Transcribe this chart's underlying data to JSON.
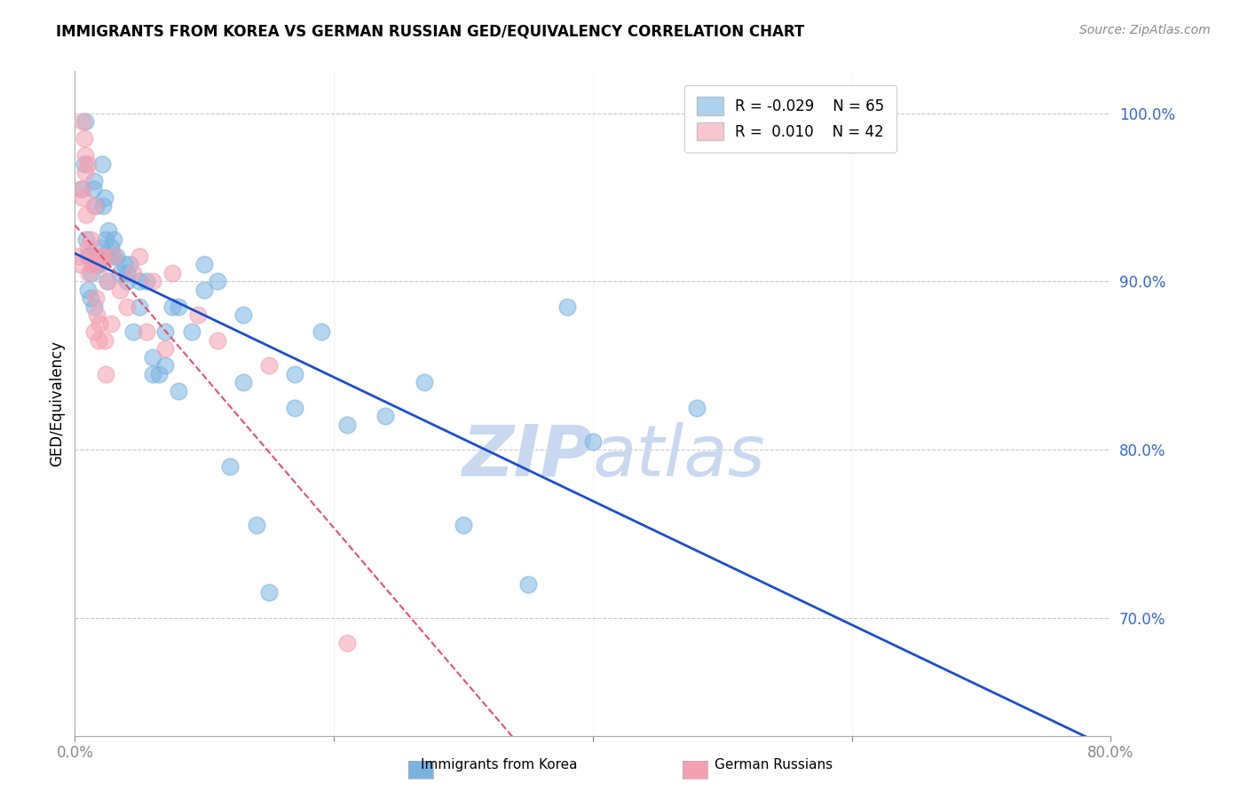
{
  "title": "IMMIGRANTS FROM KOREA VS GERMAN RUSSIAN GED/EQUIVALENCY CORRELATION CHART",
  "source": "Source: ZipAtlas.com",
  "ylabel": "GED/Equivalency",
  "right_yticks": [
    100.0,
    90.0,
    80.0,
    70.0
  ],
  "xlim": [
    0.0,
    80.0
  ],
  "ylim": [
    63.0,
    102.5
  ],
  "korea_R": -0.029,
  "korea_N": 65,
  "german_R": 0.01,
  "german_N": 42,
  "korea_color": "#7ab3e0",
  "german_color": "#f4a0b0",
  "trend_korea_color": "#1a4fcc",
  "trend_german_color": "#e05070",
  "korea_x": [
    0.5,
    0.7,
    0.8,
    0.9,
    1.0,
    1.0,
    1.1,
    1.2,
    1.3,
    1.4,
    1.5,
    1.5,
    1.6,
    1.7,
    1.8,
    2.0,
    2.1,
    2.2,
    2.3,
    2.4,
    2.5,
    2.6,
    2.8,
    3.0,
    3.2,
    3.5,
    3.8,
    4.0,
    4.2,
    4.5,
    5.0,
    5.5,
    6.0,
    6.5,
    7.0,
    7.5,
    8.0,
    9.0,
    10.0,
    11.0,
    12.0,
    13.0,
    14.0,
    15.0,
    17.0,
    19.0,
    21.0,
    24.0,
    27.0,
    30.0,
    35.0,
    40.0,
    48.0,
    2.0,
    2.5,
    3.0,
    4.0,
    5.0,
    6.0,
    7.0,
    8.0,
    10.0,
    13.0,
    17.0,
    38.0
  ],
  "korea_y": [
    95.5,
    97.0,
    99.5,
    92.5,
    89.5,
    91.5,
    91.5,
    89.0,
    90.5,
    95.5,
    96.0,
    88.5,
    94.5,
    91.0,
    91.0,
    91.5,
    97.0,
    94.5,
    95.0,
    92.5,
    91.5,
    93.0,
    92.0,
    91.5,
    91.5,
    90.5,
    91.0,
    90.5,
    91.0,
    87.0,
    90.0,
    90.0,
    85.5,
    84.5,
    85.0,
    88.5,
    88.5,
    87.0,
    91.0,
    90.0,
    79.0,
    84.0,
    75.5,
    71.5,
    82.5,
    87.0,
    81.5,
    82.0,
    84.0,
    75.5,
    72.0,
    80.5,
    82.5,
    92.0,
    90.0,
    92.5,
    90.0,
    88.5,
    84.5,
    87.0,
    83.5,
    89.5,
    88.0,
    84.5,
    88.5
  ],
  "german_x": [
    0.3,
    0.5,
    0.6,
    0.7,
    0.8,
    0.9,
    1.0,
    1.1,
    1.2,
    1.3,
    1.4,
    1.5,
    1.6,
    1.7,
    1.9,
    2.0,
    2.1,
    2.3,
    2.5,
    2.8,
    3.0,
    3.5,
    4.0,
    4.5,
    5.0,
    5.5,
    6.0,
    7.0,
    7.5,
    9.5,
    11.0,
    15.0,
    0.4,
    0.6,
    0.8,
    1.0,
    1.3,
    1.5,
    1.8,
    2.0,
    2.4,
    21.0
  ],
  "german_y": [
    91.5,
    95.5,
    99.5,
    98.5,
    97.5,
    94.0,
    92.0,
    90.5,
    92.5,
    91.0,
    91.0,
    94.5,
    89.0,
    88.0,
    87.5,
    91.5,
    91.5,
    86.5,
    90.0,
    87.5,
    91.5,
    89.5,
    88.5,
    90.5,
    91.5,
    87.0,
    90.0,
    86.0,
    90.5,
    88.0,
    86.5,
    85.0,
    91.0,
    95.0,
    96.5,
    97.0,
    91.5,
    87.0,
    86.5,
    91.0,
    84.5,
    68.5
  ],
  "background_color": "#ffffff",
  "grid_color": "#c8c8c8",
  "watermark_color": "#c8d8f0"
}
